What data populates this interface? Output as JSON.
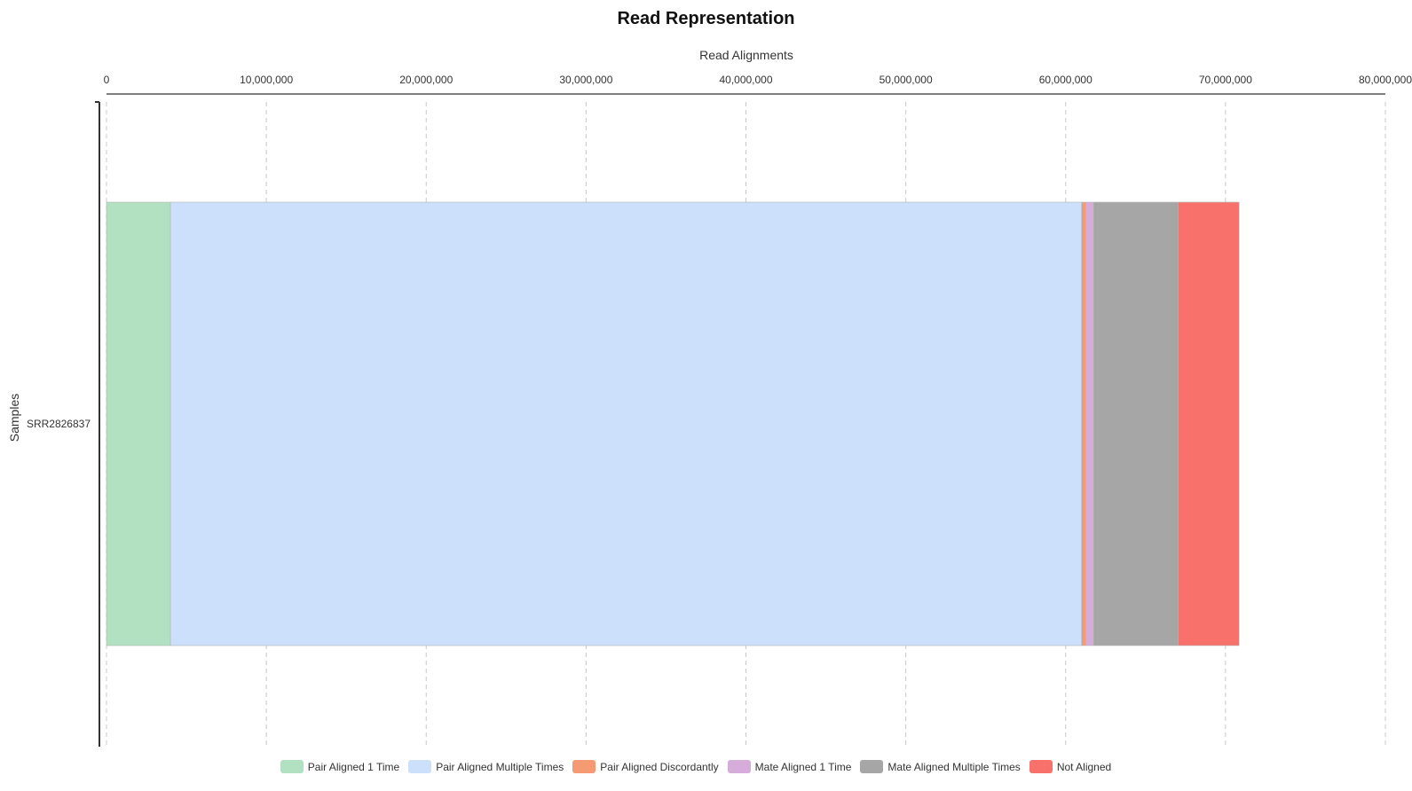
{
  "chart_data": {
    "type": "bar",
    "orientation": "horizontal",
    "stacked": true,
    "title": "Read Representation",
    "xlabel": "Read Alignments",
    "ylabel": "Samples",
    "xlim": [
      0,
      80000000
    ],
    "x_ticks": [
      0,
      10000000,
      20000000,
      30000000,
      40000000,
      50000000,
      60000000,
      70000000,
      80000000
    ],
    "x_tick_labels": [
      "0",
      "10,000,000",
      "20,000,000",
      "30,000,000",
      "40,000,000",
      "50,000,000",
      "60,000,000",
      "70,000,000",
      "80,000,000"
    ],
    "x_axis_position": "top",
    "grid": "vertical dashed",
    "legend_position": "bottom",
    "categories": [
      "SRR2826837"
    ],
    "series": [
      {
        "name": "Pair Aligned 1 Time",
        "color": "#b1e1c0",
        "values": [
          4000000
        ]
      },
      {
        "name": "Pair Aligned Multiple Times",
        "color": "#cce0fb",
        "values": [
          57000000
        ]
      },
      {
        "name": "Pair Aligned Discordantly",
        "color": "#f59a72",
        "values": [
          250000
        ]
      },
      {
        "name": "Mate Aligned 1 Time",
        "color": "#d6acda",
        "values": [
          500000
        ]
      },
      {
        "name": "Mate Aligned Multiple Times",
        "color": "#a6a6a6",
        "values": [
          5300000
        ]
      },
      {
        "name": "Not Aligned",
        "color": "#f8716b",
        "values": [
          3800000
        ]
      }
    ]
  }
}
